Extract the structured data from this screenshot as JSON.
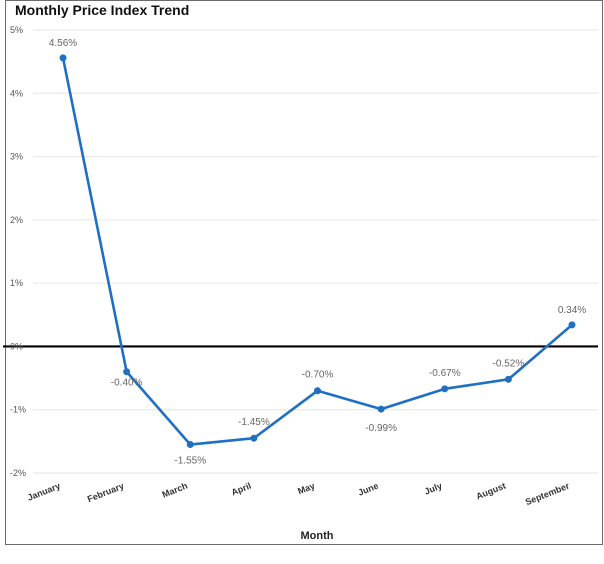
{
  "chart_data": {
    "type": "line",
    "title": "Monthly Price Index Trend",
    "xlabel": "Month",
    "ylabel": "",
    "categories": [
      "January",
      "February",
      "March",
      "April",
      "May",
      "June",
      "July",
      "August",
      "September"
    ],
    "values": [
      4.56,
      -0.4,
      -1.55,
      -1.45,
      -0.7,
      -0.99,
      -0.67,
      -0.52,
      0.34
    ],
    "data_labels": [
      "4.56%",
      "-0.40%",
      "-1.55%",
      "-1.45%",
      "-0.70%",
      "-0.99%",
      "-0.67%",
      "-0.52%",
      "0.34%"
    ],
    "ylim": [
      -2,
      5
    ],
    "yticks": [
      -2,
      -1,
      0,
      1,
      2,
      3,
      4,
      5
    ],
    "ytick_labels": [
      "-2%",
      "-1%",
      "0%",
      "1%",
      "2%",
      "3%",
      "4%",
      "5%"
    ],
    "grid": true,
    "line_color": "#1f6fc4",
    "zero_line_color": "#000000"
  }
}
